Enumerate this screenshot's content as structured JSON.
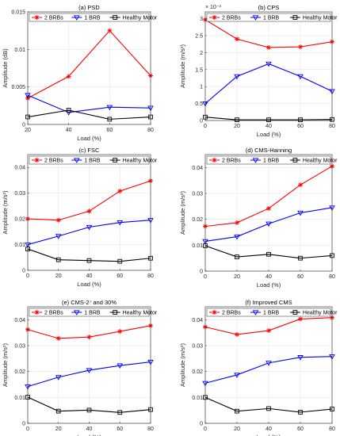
{
  "colors": {
    "2 BRBs": "#ff0000",
    "1 BRB": "#0000ff",
    "Healthy Motor": "#000000"
  },
  "markers": {
    "2 BRBs": "star",
    "1 BRB": "triangle-down",
    "Healthy Motor": "square"
  },
  "chart_data": [
    {
      "type": "line",
      "title": "(a) PSD",
      "xlabel": "Load (%)",
      "ylabel": "Amplitude (dB)",
      "x": [
        20,
        40,
        60,
        80
      ],
      "xlim": [
        20,
        80
      ],
      "xticks": [
        "20",
        "40",
        "60",
        "80"
      ],
      "ylim": [
        0,
        0.015
      ],
      "yticks": [
        "0",
        "0.005",
        "0.01",
        "0.015"
      ],
      "grid": true,
      "legend": "top, horizontal",
      "series": [
        {
          "name": "2 BRBs",
          "values": [
            0.0035,
            0.0064,
            0.0125,
            0.0065
          ]
        },
        {
          "name": "1 BRB",
          "values": [
            0.0039,
            0.0016,
            0.0023,
            0.0022
          ]
        },
        {
          "name": "Healthy Motor",
          "values": [
            0.001,
            0.0019,
            0.0007,
            0.001
          ]
        }
      ]
    },
    {
      "type": "line",
      "title": "(b) CPS",
      "xlabel": "Load (%)",
      "ylabel": "Amplitude (m/s²)",
      "exponent": "× 10⁻³",
      "x": [
        0,
        20,
        40,
        60,
        80
      ],
      "xlim": [
        0,
        80
      ],
      "xticks": [
        "0",
        "20",
        "40",
        "60",
        "80"
      ],
      "ylim": [
        0,
        3.2
      ],
      "yticks": [
        "0",
        "0.5",
        "1",
        "1.5",
        "2",
        "2.5",
        "3"
      ],
      "grid": true,
      "legend": "top, horizontal",
      "series": [
        {
          "name": "2 BRBs",
          "values": [
            2.97,
            2.4,
            2.15,
            2.17,
            2.32
          ]
        },
        {
          "name": "1 BRB",
          "values": [
            0.5,
            1.3,
            1.67,
            1.3,
            0.86
          ]
        },
        {
          "name": "Healthy Motor",
          "values": [
            0.1,
            0.02,
            0.02,
            0.02,
            0.03
          ]
        }
      ]
    },
    {
      "type": "line",
      "title": "(c) FSC",
      "xlabel": "Load (%)",
      "ylabel": "Amplitude (m/s²)",
      "x": [
        0,
        20,
        40,
        60,
        80
      ],
      "xlim": [
        0,
        80
      ],
      "xticks": [
        "0",
        "20",
        "40",
        "60",
        "80"
      ],
      "ylim": [
        0,
        0.045
      ],
      "yticks": [
        "0",
        "0.01",
        "0.02",
        "0.03",
        "0.04"
      ],
      "grid": true,
      "legend": "top, horizontal",
      "series": [
        {
          "name": "2 BRBs",
          "values": [
            0.02,
            0.0195,
            0.023,
            0.0308,
            0.0348
          ]
        },
        {
          "name": "1 BRB",
          "values": [
            0.01,
            0.0133,
            0.0168,
            0.0186,
            0.0195
          ]
        },
        {
          "name": "Healthy Motor",
          "values": [
            0.0083,
            0.0041,
            0.0038,
            0.0035,
            0.0047
          ]
        }
      ]
    },
    {
      "type": "line",
      "title": "(d) CMS-Hanning",
      "xlabel": "Load (%)",
      "ylabel": "Amplitude (m/s²)",
      "x": [
        0,
        20,
        40,
        60,
        80
      ],
      "xlim": [
        0,
        80
      ],
      "xticks": [
        "0",
        "20",
        "40",
        "60",
        "80"
      ],
      "ylim": [
        0,
        0.045
      ],
      "yticks": [
        "0",
        "0.01",
        "0.02",
        "0.03",
        "0.04"
      ],
      "grid": true,
      "legend": "top, horizontal",
      "series": [
        {
          "name": "2 BRBs",
          "values": [
            0.0173,
            0.0187,
            0.0242,
            0.0333,
            0.0405
          ]
        },
        {
          "name": "1 BRB",
          "values": [
            0.0115,
            0.0133,
            0.0183,
            0.0225,
            0.0245
          ]
        },
        {
          "name": "Healthy Motor",
          "values": [
            0.0098,
            0.0055,
            0.0065,
            0.005,
            0.006
          ]
        }
      ]
    },
    {
      "type": "line",
      "title": "(e) CMS-2⁷ and 30%",
      "xlabel": "Load (%)",
      "ylabel": "Amplitude (m/s²)",
      "x": [
        0,
        20,
        40,
        60,
        80
      ],
      "xlim": [
        0,
        80
      ],
      "xticks": [
        "0",
        "20",
        "40",
        "60",
        "80"
      ],
      "ylim": [
        0,
        0.045
      ],
      "yticks": [
        "0",
        "0.01",
        "0.02",
        "0.03",
        "0.04"
      ],
      "grid": true,
      "legend": "top, horizontal",
      "series": [
        {
          "name": "2 BRBs",
          "values": [
            0.0362,
            0.0328,
            0.0333,
            0.0355,
            0.0377
          ]
        },
        {
          "name": "1 BRB",
          "values": [
            0.0142,
            0.0178,
            0.0205,
            0.0223,
            0.0237
          ]
        },
        {
          "name": "Healthy Motor",
          "values": [
            0.0101,
            0.0047,
            0.0051,
            0.0042,
            0.0053
          ]
        }
      ]
    },
    {
      "type": "line",
      "title": "(f) Improved CMS",
      "xlabel": "Load (%)",
      "ylabel": "Amplitude (m/s²)",
      "x": [
        0,
        20,
        40,
        60,
        80
      ],
      "xlim": [
        0,
        80
      ],
      "xticks": [
        "0",
        "20",
        "40",
        "60",
        "80"
      ],
      "ylim": [
        0,
        0.045
      ],
      "yticks": [
        "0",
        "0.01",
        "0.02",
        "0.03",
        "0.04"
      ],
      "grid": true,
      "legend": "top, horizontal",
      "series": [
        {
          "name": "2 BRBs",
          "values": [
            0.0372,
            0.0343,
            0.0358,
            0.0403,
            0.0408
          ]
        },
        {
          "name": "1 BRB",
          "values": [
            0.0155,
            0.0187,
            0.0233,
            0.0255,
            0.0258
          ]
        },
        {
          "name": "Healthy Motor",
          "values": [
            0.01,
            0.0047,
            0.0057,
            0.0043,
            0.0055
          ]
        }
      ]
    }
  ]
}
